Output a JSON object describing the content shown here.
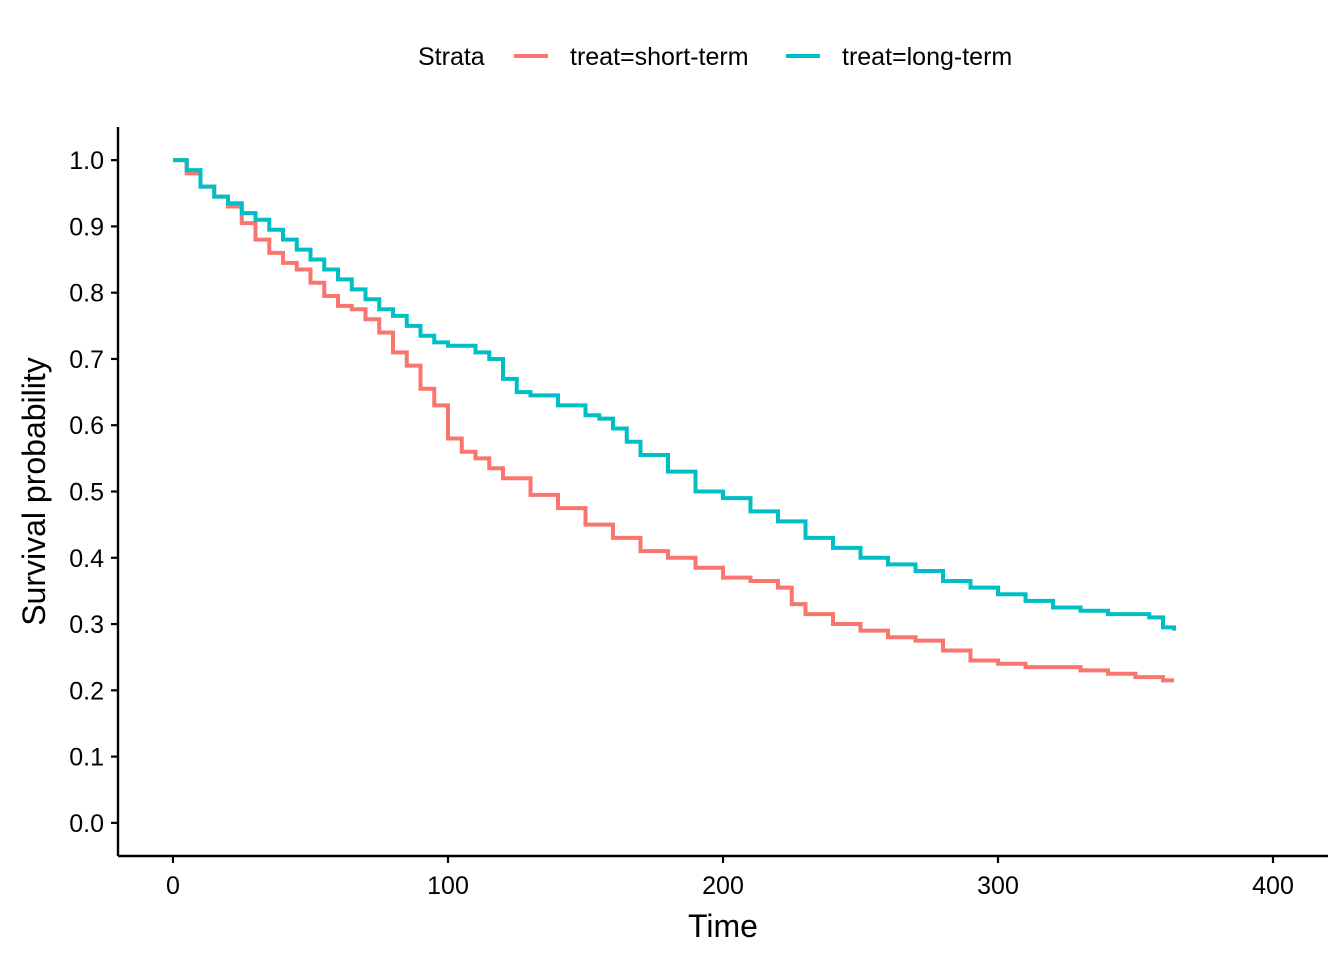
{
  "chart_data": {
    "type": "line",
    "step": true,
    "xlabel": "Time",
    "ylabel": "Survival probability",
    "xlim": [
      -20,
      420
    ],
    "ylim": [
      -0.05,
      1.05
    ],
    "xticks": [
      0,
      100,
      200,
      300,
      400
    ],
    "yticks": [
      0.0,
      0.1,
      0.2,
      0.3,
      0.4,
      0.5,
      0.6,
      0.7,
      0.8,
      0.9,
      1.0
    ],
    "ytick_labels": [
      "0.0",
      "0.1",
      "0.2",
      "0.3",
      "0.4",
      "0.5",
      "0.6",
      "0.7",
      "0.8",
      "0.9",
      "1.0"
    ],
    "grid": false,
    "legend": {
      "title": "Strata",
      "position": "top"
    },
    "series": [
      {
        "name": "treat=short-term",
        "color": "#F8766D",
        "x": [
          0,
          5,
          10,
          15,
          20,
          25,
          30,
          35,
          40,
          45,
          50,
          55,
          60,
          65,
          70,
          75,
          80,
          85,
          90,
          95,
          100,
          105,
          110,
          115,
          120,
          130,
          140,
          150,
          160,
          170,
          180,
          190,
          200,
          210,
          220,
          225,
          230,
          240,
          250,
          260,
          270,
          280,
          290,
          300,
          310,
          320,
          330,
          340,
          350,
          360,
          364
        ],
        "y": [
          1.0,
          0.98,
          0.96,
          0.945,
          0.93,
          0.905,
          0.88,
          0.86,
          0.845,
          0.835,
          0.815,
          0.795,
          0.78,
          0.775,
          0.76,
          0.74,
          0.71,
          0.69,
          0.655,
          0.63,
          0.58,
          0.56,
          0.55,
          0.535,
          0.52,
          0.495,
          0.475,
          0.45,
          0.43,
          0.41,
          0.4,
          0.385,
          0.37,
          0.365,
          0.355,
          0.33,
          0.315,
          0.3,
          0.29,
          0.28,
          0.275,
          0.26,
          0.245,
          0.24,
          0.235,
          0.235,
          0.23,
          0.225,
          0.22,
          0.215,
          0.215
        ]
      },
      {
        "name": "treat=long-term",
        "color": "#00BFC4",
        "x": [
          0,
          5,
          10,
          15,
          20,
          25,
          30,
          35,
          40,
          45,
          50,
          55,
          60,
          65,
          70,
          75,
          80,
          85,
          90,
          95,
          100,
          105,
          110,
          115,
          120,
          125,
          130,
          140,
          150,
          155,
          160,
          165,
          170,
          180,
          190,
          200,
          210,
          220,
          230,
          240,
          250,
          260,
          270,
          280,
          290,
          300,
          310,
          320,
          330,
          340,
          350,
          355,
          360,
          364
        ],
        "y": [
          1.0,
          0.985,
          0.96,
          0.945,
          0.935,
          0.92,
          0.91,
          0.895,
          0.88,
          0.865,
          0.85,
          0.835,
          0.82,
          0.805,
          0.79,
          0.775,
          0.765,
          0.75,
          0.735,
          0.725,
          0.72,
          0.72,
          0.71,
          0.7,
          0.67,
          0.65,
          0.645,
          0.63,
          0.615,
          0.61,
          0.595,
          0.575,
          0.555,
          0.53,
          0.5,
          0.49,
          0.47,
          0.455,
          0.43,
          0.415,
          0.4,
          0.39,
          0.38,
          0.365,
          0.355,
          0.345,
          0.335,
          0.325,
          0.32,
          0.315,
          0.315,
          0.31,
          0.295,
          0.29
        ]
      }
    ]
  }
}
